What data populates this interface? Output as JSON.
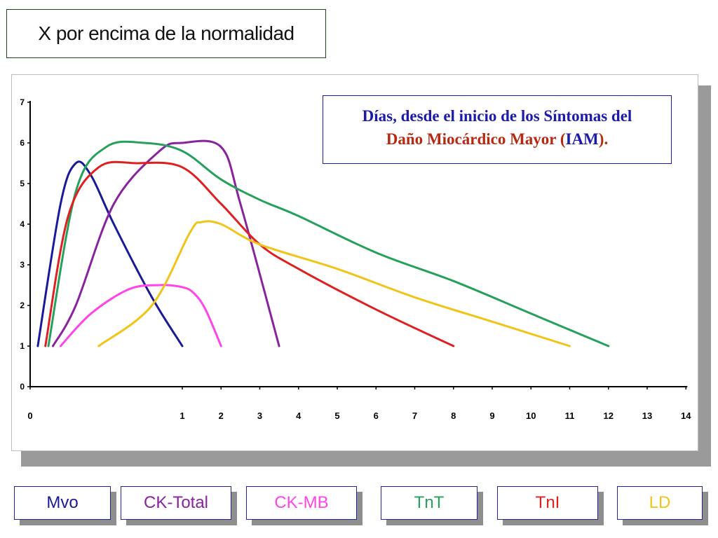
{
  "title": "X por encima de la normalidad",
  "info_box": {
    "line1": "Días, desde el inicio de los Síntomas del",
    "line2_part1": "Daño Miocárdico Mayor (",
    "line2_part2": "IAM",
    "line2_part3": ")."
  },
  "chart_data": {
    "type": "line",
    "title": "",
    "xlabel": "",
    "ylabel": "",
    "ylim": [
      0,
      7
    ],
    "y_ticks": [
      "0",
      "1",
      "2",
      "3",
      "4",
      "5",
      "6",
      "7"
    ],
    "x_ticks": [
      "0",
      "1",
      "2",
      "3",
      "4",
      "5",
      "6",
      "7",
      "8",
      "9",
      "10",
      "11",
      "12",
      "13",
      "14"
    ],
    "x_scale_note": "non-linear: 0 to 1 spans a wider interval than later days",
    "grid": false,
    "series": [
      {
        "name": "Mvo",
        "color": "#1a1a99",
        "x": [
          0.05,
          0.2,
          0.3,
          0.4,
          0.55,
          0.8,
          1.0
        ],
        "y": [
          1,
          4.5,
          5.5,
          5.2,
          4.0,
          2.2,
          1
        ]
      },
      {
        "name": "CK-Total",
        "color": "#8a22a0",
        "x": [
          0.15,
          0.3,
          0.55,
          0.85,
          1.0,
          2.0,
          2.5,
          3.5
        ],
        "y": [
          1,
          2.0,
          4.5,
          5.8,
          6.0,
          5.9,
          4.5,
          1
        ]
      },
      {
        "name": "CK-MB",
        "color": "#ff44e8",
        "x": [
          0.2,
          0.4,
          0.65,
          0.85,
          1.0,
          1.3,
          1.6,
          2.0
        ],
        "y": [
          1,
          1.8,
          2.4,
          2.5,
          2.45,
          2.3,
          1.9,
          1
        ]
      },
      {
        "name": "TnT",
        "color": "#27a05c",
        "x": [
          0.12,
          0.3,
          0.5,
          0.75,
          1.0,
          2.0,
          3.0,
          4.0,
          6.0,
          8.0,
          10.0,
          12.0
        ],
        "y": [
          1,
          4.8,
          5.9,
          6.0,
          5.8,
          5.1,
          4.6,
          4.2,
          3.3,
          2.6,
          1.8,
          1
        ]
      },
      {
        "name": "TnI",
        "color": "#e02020",
        "x": [
          0.1,
          0.25,
          0.45,
          0.7,
          1.0,
          2.0,
          3.0,
          4.0,
          6.0,
          8.0
        ],
        "y": [
          1,
          4.2,
          5.4,
          5.5,
          5.4,
          4.5,
          3.5,
          2.9,
          1.9,
          1
        ]
      },
      {
        "name": "LD",
        "color": "#f0c418",
        "x": [
          0.45,
          0.8,
          1.2,
          1.5,
          2.0,
          3.0,
          5.0,
          7.0,
          9.0,
          11.0
        ],
        "y": [
          1,
          2.0,
          3.8,
          4.05,
          4.0,
          3.5,
          2.9,
          2.2,
          1.6,
          1
        ]
      }
    ]
  },
  "legend": [
    {
      "label": "Mvo",
      "color": "#1a1a99"
    },
    {
      "label": "CK-Total",
      "color": "#8a22a0"
    },
    {
      "label": "CK-MB",
      "color": "#ff44e8"
    },
    {
      "label": "TnT",
      "color": "#27a05c"
    },
    {
      "label": "TnI",
      "color": "#e02020"
    },
    {
      "label": "LD",
      "color": "#f0c418"
    }
  ]
}
